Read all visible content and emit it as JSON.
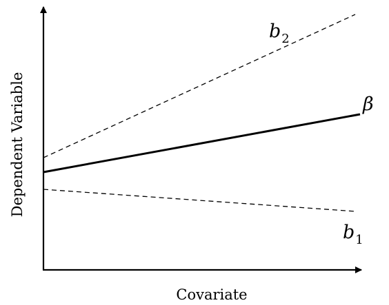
{
  "axes": {
    "x_label": "Covariate",
    "y_label": "Dependent Variable"
  },
  "lines": {
    "beta": {
      "label": "β",
      "style": "solid",
      "color": "#000000"
    },
    "b2": {
      "label_main": "b",
      "label_sub": "2",
      "style": "dashed",
      "color": "#000000"
    },
    "b1": {
      "label_main": "b",
      "label_sub": "1",
      "style": "dashed",
      "color": "#000000"
    }
  }
}
